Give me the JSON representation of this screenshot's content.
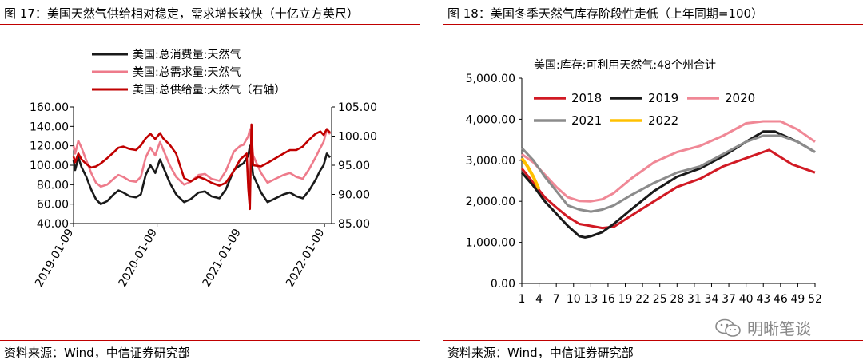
{
  "left": {
    "fig_title": "图 17：美国天然气供给相对稳定，需求增长较快（十亿立方英尺）",
    "source": "资料来源：Wind，中信证券研究部"
  },
  "right": {
    "fig_title": "图 18：美国冬季天然气库存阶段性走低（上年同期=100）",
    "source": "资料来源：Wind，中信证券研究部"
  },
  "watermark": {
    "text": "明晰笔谈",
    "icon": "wechat-icon"
  },
  "chart_data": [
    {
      "type": "line",
      "legend_position": "top",
      "x_tick_labels": [
        "2019-01-09",
        "2020-01-09",
        "2021-01-09",
        "2022-01-09"
      ],
      "x_range": [
        "2019-01-09",
        "2022-02-09"
      ],
      "y_left": {
        "lim": [
          40,
          160
        ],
        "ticks": [
          "40.00",
          "60.00",
          "80.00",
          "100.00",
          "120.00",
          "140.00",
          "160.00"
        ]
      },
      "y_right": {
        "lim": [
          85,
          105
        ],
        "ticks": [
          "85.00",
          "90.00",
          "95.00",
          "100.00",
          "105.00"
        ]
      },
      "grid": false,
      "series": [
        {
          "name": "美国:总消费量:天然气",
          "axis": "left",
          "color": "#1a1a1a",
          "points": [
            [
              "2019-01-09",
              105
            ],
            [
              "2019-01-16",
              95
            ],
            [
              "2019-01-30",
              108
            ],
            [
              "2019-02-13",
              98
            ],
            [
              "2019-03-06",
              88
            ],
            [
              "2019-03-27",
              75
            ],
            [
              "2019-04-17",
              65
            ],
            [
              "2019-05-08",
              60
            ],
            [
              "2019-06-05",
              63
            ],
            [
              "2019-07-03",
              70
            ],
            [
              "2019-07-24",
              74
            ],
            [
              "2019-08-14",
              72
            ],
            [
              "2019-09-11",
              68
            ],
            [
              "2019-10-09",
              67
            ],
            [
              "2019-10-30",
              70
            ],
            [
              "2019-11-20",
              90
            ],
            [
              "2019-12-11",
              100
            ],
            [
              "2020-01-01",
              92
            ],
            [
              "2020-01-22",
              106
            ],
            [
              "2020-02-05",
              98
            ],
            [
              "2020-03-04",
              82
            ],
            [
              "2020-04-01",
              70
            ],
            [
              "2020-05-06",
              62
            ],
            [
              "2020-06-03",
              65
            ],
            [
              "2020-07-08",
              72
            ],
            [
              "2020-08-05",
              73
            ],
            [
              "2020-09-02",
              68
            ],
            [
              "2020-10-07",
              66
            ],
            [
              "2020-11-04",
              75
            ],
            [
              "2020-12-09",
              95
            ],
            [
              "2021-01-06",
              100
            ],
            [
              "2021-01-20",
              102
            ],
            [
              "2021-02-10",
              110
            ],
            [
              "2021-02-17",
              120
            ],
            [
              "2021-03-03",
              90
            ],
            [
              "2021-04-07",
              72
            ],
            [
              "2021-05-05",
              62
            ],
            [
              "2021-06-09",
              66
            ],
            [
              "2021-07-14",
              70
            ],
            [
              "2021-08-11",
              72
            ],
            [
              "2021-09-08",
              68
            ],
            [
              "2021-10-06",
              66
            ],
            [
              "2021-11-03",
              74
            ],
            [
              "2021-12-01",
              85
            ],
            [
              "2021-12-22",
              95
            ],
            [
              "2022-01-05",
              100
            ],
            [
              "2022-01-19",
              112
            ],
            [
              "2022-02-02",
              108
            ]
          ]
        },
        {
          "name": "美国:总需求量:天然气",
          "axis": "left",
          "color": "#ee7b8b",
          "points": [
            [
              "2019-01-09",
              120
            ],
            [
              "2019-01-16",
              112
            ],
            [
              "2019-01-30",
              125
            ],
            [
              "2019-02-13",
              118
            ],
            [
              "2019-03-06",
              105
            ],
            [
              "2019-03-27",
              92
            ],
            [
              "2019-04-17",
              82
            ],
            [
              "2019-05-08",
              78
            ],
            [
              "2019-06-05",
              80
            ],
            [
              "2019-07-03",
              86
            ],
            [
              "2019-07-24",
              90
            ],
            [
              "2019-08-14",
              88
            ],
            [
              "2019-09-11",
              84
            ],
            [
              "2019-10-09",
              83
            ],
            [
              "2019-10-30",
              88
            ],
            [
              "2019-11-20",
              108
            ],
            [
              "2019-12-11",
              118
            ],
            [
              "2020-01-01",
              110
            ],
            [
              "2020-01-22",
              124
            ],
            [
              "2020-02-05",
              116
            ],
            [
              "2020-03-04",
              100
            ],
            [
              "2020-04-01",
              88
            ],
            [
              "2020-05-06",
              80
            ],
            [
              "2020-06-03",
              83
            ],
            [
              "2020-07-08",
              90
            ],
            [
              "2020-08-05",
              91
            ],
            [
              "2020-09-02",
              86
            ],
            [
              "2020-10-07",
              84
            ],
            [
              "2020-11-04",
              94
            ],
            [
              "2020-12-09",
              114
            ],
            [
              "2021-01-06",
              120
            ],
            [
              "2021-01-20",
              121
            ],
            [
              "2021-02-10",
              130
            ],
            [
              "2021-02-17",
              137
            ],
            [
              "2021-03-03",
              110
            ],
            [
              "2021-04-07",
              92
            ],
            [
              "2021-05-05",
              82
            ],
            [
              "2021-06-09",
              86
            ],
            [
              "2021-07-14",
              90
            ],
            [
              "2021-08-11",
              92
            ],
            [
              "2021-09-08",
              88
            ],
            [
              "2021-10-06",
              86
            ],
            [
              "2021-11-03",
              96
            ],
            [
              "2021-12-01",
              108
            ],
            [
              "2021-12-22",
              118
            ],
            [
              "2022-01-05",
              124
            ],
            [
              "2022-01-19",
              137
            ],
            [
              "2022-02-02",
              132
            ]
          ]
        },
        {
          "name": "美国:总供给量:天然气（右轴）",
          "axis": "right",
          "color": "#c00000",
          "points": [
            [
              "2019-01-09",
              96.5
            ],
            [
              "2019-01-16",
              95.5
            ],
            [
              "2019-01-30",
              97
            ],
            [
              "2019-02-13",
              96
            ],
            [
              "2019-03-06",
              95.2
            ],
            [
              "2019-03-27",
              94.6
            ],
            [
              "2019-04-17",
              94.8
            ],
            [
              "2019-05-08",
              95.3
            ],
            [
              "2019-06-05",
              96.2
            ],
            [
              "2019-07-03",
              97.2
            ],
            [
              "2019-07-24",
              98
            ],
            [
              "2019-08-14",
              98.2
            ],
            [
              "2019-09-11",
              97.8
            ],
            [
              "2019-10-09",
              97.6
            ],
            [
              "2019-10-30",
              98.4
            ],
            [
              "2019-11-20",
              99.6
            ],
            [
              "2019-12-11",
              100.4
            ],
            [
              "2020-01-01",
              99.5
            ],
            [
              "2020-01-22",
              100.5
            ],
            [
              "2020-02-05",
              99.6
            ],
            [
              "2020-03-04",
              98.5
            ],
            [
              "2020-04-01",
              97
            ],
            [
              "2020-05-06",
              92.8
            ],
            [
              "2020-06-03",
              92.2
            ],
            [
              "2020-07-08",
              93
            ],
            [
              "2020-08-05",
              92.6
            ],
            [
              "2020-09-02",
              92
            ],
            [
              "2020-10-07",
              91.5
            ],
            [
              "2020-11-04",
              92
            ],
            [
              "2020-12-09",
              94
            ],
            [
              "2021-01-06",
              96
            ],
            [
              "2021-01-20",
              96.5
            ],
            [
              "2021-02-03",
              97
            ],
            [
              "2021-02-10",
              91
            ],
            [
              "2021-02-17",
              87.5
            ],
            [
              "2021-02-24",
              102
            ],
            [
              "2021-03-03",
              95
            ],
            [
              "2021-04-07",
              94.8
            ],
            [
              "2021-05-05",
              95.4
            ],
            [
              "2021-06-09",
              96.2
            ],
            [
              "2021-07-14",
              97
            ],
            [
              "2021-08-11",
              97.6
            ],
            [
              "2021-09-08",
              97.6
            ],
            [
              "2021-10-06",
              98.2
            ],
            [
              "2021-11-03",
              99.4
            ],
            [
              "2021-12-01",
              100.4
            ],
            [
              "2021-12-22",
              100.8
            ],
            [
              "2022-01-05",
              100.2
            ],
            [
              "2022-01-19",
              101.2
            ],
            [
              "2022-02-02",
              100.6
            ]
          ]
        }
      ]
    },
    {
      "type": "line",
      "title": "美国:库存:可利用天然气:48个州合计",
      "legend_position": "top-left",
      "x_tick_labels": [
        "1",
        "4",
        "7",
        "10",
        "13",
        "16",
        "19",
        "22",
        "25",
        "28",
        "31",
        "34",
        "37",
        "40",
        "43",
        "46",
        "49",
        "52"
      ],
      "x_range": [
        1,
        52
      ],
      "y_left": {
        "lim": [
          0,
          5000
        ],
        "ticks": [
          "0.00",
          "1,000.00",
          "2,000.00",
          "3,000.00",
          "4,000.00",
          "5,000.00"
        ]
      },
      "grid": false,
      "series": [
        {
          "name": "2018",
          "color": "#d11a24",
          "points": [
            [
              1,
              2800
            ],
            [
              3,
              2450
            ],
            [
              5,
              2100
            ],
            [
              7,
              1850
            ],
            [
              9,
              1620
            ],
            [
              11,
              1450
            ],
            [
              13,
              1400
            ],
            [
              15,
              1350
            ],
            [
              17,
              1380
            ],
            [
              20,
              1650
            ],
            [
              24,
              2000
            ],
            [
              28,
              2350
            ],
            [
              32,
              2550
            ],
            [
              36,
              2850
            ],
            [
              40,
              3050
            ],
            [
              44,
              3250
            ],
            [
              48,
              2900
            ],
            [
              52,
              2700
            ]
          ]
        },
        {
          "name": "2019",
          "color": "#1a1a1a",
          "points": [
            [
              1,
              2700
            ],
            [
              3,
              2380
            ],
            [
              5,
              2000
            ],
            [
              7,
              1700
            ],
            [
              9,
              1400
            ],
            [
              11,
              1150
            ],
            [
              12,
              1120
            ],
            [
              13,
              1150
            ],
            [
              15,
              1250
            ],
            [
              17,
              1450
            ],
            [
              20,
              1800
            ],
            [
              24,
              2250
            ],
            [
              28,
              2600
            ],
            [
              32,
              2800
            ],
            [
              36,
              3100
            ],
            [
              40,
              3450
            ],
            [
              43,
              3700
            ],
            [
              45,
              3700
            ],
            [
              49,
              3450
            ],
            [
              52,
              3200
            ]
          ]
        },
        {
          "name": "2020",
          "color": "#f08896",
          "points": [
            [
              1,
              3150
            ],
            [
              3,
              2950
            ],
            [
              5,
              2650
            ],
            [
              7,
              2350
            ],
            [
              9,
              2100
            ],
            [
              11,
              2010
            ],
            [
              13,
              2000
            ],
            [
              15,
              2050
            ],
            [
              17,
              2200
            ],
            [
              20,
              2550
            ],
            [
              24,
              2950
            ],
            [
              28,
              3200
            ],
            [
              32,
              3350
            ],
            [
              36,
              3600
            ],
            [
              40,
              3900
            ],
            [
              43,
              3950
            ],
            [
              46,
              3950
            ],
            [
              49,
              3750
            ],
            [
              52,
              3450
            ]
          ]
        },
        {
          "name": "2021",
          "color": "#8c8c8c",
          "points": [
            [
              1,
              3300
            ],
            [
              3,
              3000
            ],
            [
              5,
              2600
            ],
            [
              7,
              2250
            ],
            [
              9,
              1900
            ],
            [
              11,
              1800
            ],
            [
              13,
              1750
            ],
            [
              15,
              1800
            ],
            [
              17,
              1900
            ],
            [
              20,
              2150
            ],
            [
              24,
              2450
            ],
            [
              28,
              2700
            ],
            [
              32,
              2850
            ],
            [
              36,
              3150
            ],
            [
              40,
              3450
            ],
            [
              43,
              3600
            ],
            [
              46,
              3600
            ],
            [
              49,
              3450
            ],
            [
              52,
              3200
            ]
          ]
        },
        {
          "name": "2022",
          "color": "#ffc000",
          "points": [
            [
              1,
              3050
            ],
            [
              2,
              2850
            ],
            [
              3,
              2600
            ],
            [
              4,
              2300
            ]
          ]
        }
      ]
    }
  ]
}
